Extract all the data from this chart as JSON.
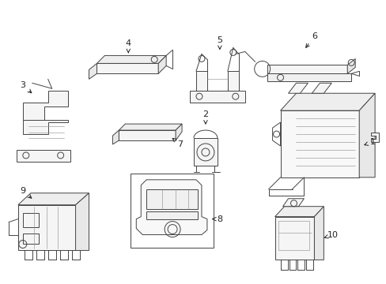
{
  "bg_color": "#ffffff",
  "lc": "#444444",
  "lw": 0.7,
  "figsize": [
    4.89,
    3.6
  ],
  "dpi": 100
}
